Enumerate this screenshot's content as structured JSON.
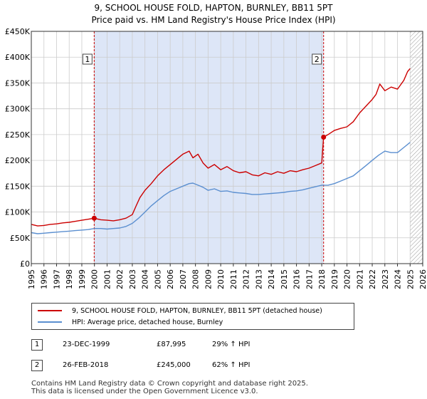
{
  "chart_data": {
    "type": "line",
    "title": "9, SCHOOL HOUSE FOLD, HAPTON, BURNLEY, BB11 5PT",
    "subtitle": "Price paid vs. HM Land Registry's House Price Index (HPI)",
    "xlim": [
      1995,
      2026
    ],
    "ylim": [
      0,
      450000
    ],
    "x_ticks": [
      "1995",
      "1996",
      "1997",
      "1998",
      "1999",
      "2000",
      "2001",
      "2002",
      "2003",
      "2004",
      "2005",
      "2006",
      "2007",
      "2008",
      "2009",
      "2010",
      "2011",
      "2012",
      "2013",
      "2014",
      "2015",
      "2016",
      "2017",
      "2018",
      "2019",
      "2020",
      "2021",
      "2022",
      "2023",
      "2024",
      "2025",
      "2026"
    ],
    "y_ticks": [
      {
        "value": 0,
        "label": "£0"
      },
      {
        "value": 50000,
        "label": "£50K"
      },
      {
        "value": 100000,
        "label": "£100K"
      },
      {
        "value": 150000,
        "label": "£150K"
      },
      {
        "value": 200000,
        "label": "£200K"
      },
      {
        "value": 250000,
        "label": "£250K"
      },
      {
        "value": 300000,
        "label": "£300K"
      },
      {
        "value": 350000,
        "label": "£350K"
      },
      {
        "value": 400000,
        "label": "£400K"
      },
      {
        "value": 450000,
        "label": "£450K"
      }
    ],
    "grid": true,
    "shaded_period": [
      1999.98,
      2018.15
    ],
    "hatched_from": 2025.0,
    "series": [
      {
        "name": "9, SCHOOL HOUSE FOLD, HAPTON, BURNLEY, BB11 5PT (detached house)",
        "color": "#cc0000",
        "x": [
          1995.0,
          1995.5,
          1996.0,
          1996.5,
          1997.0,
          1997.5,
          1998.0,
          1998.5,
          1999.0,
          1999.5,
          1999.98,
          2000.5,
          2001.0,
          2001.5,
          2002.0,
          2002.5,
          2003.0,
          2003.3,
          2003.6,
          2004.0,
          2004.5,
          2005.0,
          2005.5,
          2006.0,
          2006.5,
          2007.0,
          2007.5,
          2007.8,
          2008.2,
          2008.6,
          2009.0,
          2009.5,
          2010.0,
          2010.5,
          2011.0,
          2011.5,
          2012.0,
          2012.5,
          2013.0,
          2013.5,
          2014.0,
          2014.5,
          2015.0,
          2015.5,
          2016.0,
          2016.5,
          2017.0,
          2017.5,
          2018.0,
          2018.15,
          2018.5,
          2019.0,
          2019.5,
          2020.0,
          2020.5,
          2021.0,
          2021.5,
          2022.0,
          2022.3,
          2022.6,
          2023.0,
          2023.5,
          2024.0,
          2024.5,
          2024.8,
          2025.0
        ],
        "y": [
          76000,
          73000,
          74000,
          76000,
          77000,
          79000,
          80000,
          82000,
          84000,
          86000,
          87995,
          85000,
          84000,
          83000,
          85000,
          88000,
          95000,
          112000,
          128000,
          142000,
          155000,
          170000,
          182000,
          192000,
          202000,
          212000,
          218000,
          205000,
          212000,
          195000,
          185000,
          192000,
          182000,
          188000,
          180000,
          176000,
          178000,
          172000,
          170000,
          176000,
          173000,
          178000,
          175000,
          180000,
          178000,
          182000,
          185000,
          190000,
          195000,
          245000,
          250000,
          258000,
          262000,
          265000,
          275000,
          292000,
          305000,
          318000,
          328000,
          348000,
          335000,
          342000,
          338000,
          355000,
          372000,
          378000
        ]
      },
      {
        "name": "HPI: Average price, detached house, Burnley",
        "color": "#5b8fd0",
        "x": [
          1995.0,
          1995.5,
          1996.0,
          1996.5,
          1997.0,
          1997.5,
          1998.0,
          1998.5,
          1999.0,
          1999.5,
          2000.0,
          2000.5,
          2001.0,
          2001.5,
          2002.0,
          2002.5,
          2003.0,
          2003.5,
          2004.0,
          2004.5,
          2005.0,
          2005.5,
          2006.0,
          2006.5,
          2007.0,
          2007.5,
          2007.8,
          2008.2,
          2008.6,
          2009.0,
          2009.5,
          2010.0,
          2010.5,
          2011.0,
          2011.5,
          2012.0,
          2012.5,
          2013.0,
          2013.5,
          2014.0,
          2014.5,
          2015.0,
          2015.5,
          2016.0,
          2016.5,
          2017.0,
          2017.5,
          2018.0,
          2018.5,
          2019.0,
          2019.5,
          2020.0,
          2020.5,
          2021.0,
          2021.5,
          2022.0,
          2022.5,
          2023.0,
          2023.5,
          2024.0,
          2024.5,
          2025.0
        ],
        "y": [
          60000,
          58000,
          59000,
          60000,
          61000,
          62000,
          63000,
          64000,
          65000,
          66000,
          68000,
          68000,
          67000,
          68000,
          69000,
          72000,
          78000,
          88000,
          100000,
          112000,
          122000,
          132000,
          140000,
          145000,
          150000,
          155000,
          156000,
          152000,
          148000,
          142000,
          145000,
          140000,
          141000,
          138000,
          137000,
          136000,
          134000,
          134000,
          135000,
          136000,
          137000,
          138000,
          140000,
          141000,
          143000,
          146000,
          149000,
          152000,
          152000,
          155000,
          160000,
          165000,
          170000,
          180000,
          190000,
          200000,
          210000,
          218000,
          215000,
          215000,
          225000,
          235000
        ]
      }
    ],
    "annotations": [
      {
        "id": "1",
        "date": "23-DEC-1999",
        "x": 1999.98,
        "price": 87995,
        "price_label": "£87,995",
        "hpi_delta": "29% ↑ HPI"
      },
      {
        "id": "2",
        "date": "26-FEB-2018",
        "x": 2018.15,
        "price": 245000,
        "price_label": "£245,000",
        "hpi_delta": "62% ↑ HPI"
      }
    ]
  },
  "legend": {
    "property_label": "9, SCHOOL HOUSE FOLD, HAPTON, BURNLEY, BB11 5PT (detached house)",
    "hpi_label": "HPI: Average price, detached house, Burnley"
  },
  "footer": {
    "line1": "Contains HM Land Registry data © Crown copyright and database right 2025.",
    "line2": "This data is licensed under the Open Government Licence v3.0."
  },
  "colors": {
    "property": "#cc0000",
    "hpi": "#5b8fd0",
    "shade": "#dde6f7",
    "grid": "#cccccc"
  }
}
